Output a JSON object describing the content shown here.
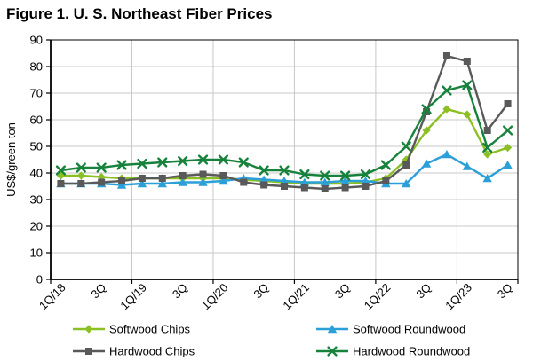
{
  "chart_data": {
    "type": "line",
    "title": "Figure 1. U. S. Northeast Fiber Prices",
    "xlabel": "",
    "ylabel": "US$/green ton",
    "ylim": [
      0,
      90
    ],
    "ytick_step": 10,
    "grid": true,
    "legend_position": "bottom",
    "categories": [
      "1Q/18",
      "2Q/18",
      "3Q/18",
      "4Q/18",
      "1Q/19",
      "2Q/19",
      "3Q/19",
      "4Q/19",
      "1Q/20",
      "2Q/20",
      "3Q/20",
      "4Q/20",
      "1Q/21",
      "2Q/21",
      "3Q/21",
      "4Q/21",
      "1Q/22",
      "2Q/22",
      "3Q/22",
      "4Q/22",
      "1Q/23",
      "2Q/23",
      "3Q/23"
    ],
    "x_tick_labels": [
      "1Q/18",
      "3Q",
      "1Q/19",
      "3Q",
      "1Q/20",
      "3Q",
      "1Q/21",
      "3Q",
      "1Q/22",
      "3Q",
      "1Q/23",
      "3Q"
    ],
    "x_tick_indices": [
      0,
      2,
      4,
      6,
      8,
      10,
      12,
      14,
      16,
      18,
      20,
      22
    ],
    "series": [
      {
        "name": "Softwood Chips",
        "color": "#8CBF23",
        "marker": "diamond",
        "values": [
          39,
          39,
          38.5,
          38,
          38,
          38,
          38,
          38,
          38,
          37.5,
          37,
          36.5,
          36,
          36,
          36,
          36.5,
          38,
          45,
          56,
          64,
          62,
          47,
          49.5
        ]
      },
      {
        "name": "Softwood Roundwood",
        "color": "#2B9FD8",
        "marker": "triangle",
        "values": [
          36,
          36,
          36,
          35.5,
          36,
          36,
          36.5,
          36.5,
          37,
          38,
          37.5,
          37,
          36.5,
          36.5,
          37,
          37,
          36,
          36,
          43.5,
          47,
          42.5,
          38,
          43
        ]
      },
      {
        "name": "Hardwood Chips",
        "color": "#595959",
        "marker": "square",
        "values": [
          36,
          36,
          36.5,
          37,
          38,
          38,
          39,
          39.5,
          39,
          36.5,
          35.5,
          35,
          34.5,
          34,
          34.5,
          35,
          37,
          43,
          63,
          84,
          82,
          56,
          66
        ]
      },
      {
        "name": "Hardwood Roundwood",
        "color": "#17823C",
        "marker": "x",
        "values": [
          41,
          42,
          42,
          43,
          43.5,
          44,
          44.5,
          45,
          45,
          44,
          41,
          41,
          39.5,
          39,
          39,
          39.5,
          43,
          50,
          64,
          71,
          73,
          49.5,
          56
        ]
      }
    ],
    "legend": {
      "columns": [
        [
          "Softwood Chips",
          "Hardwood Chips"
        ],
        [
          "Softwood Roundwood",
          "Hardwood Roundwood"
        ]
      ]
    },
    "colors": {
      "gridline": "#C8C8C8",
      "axis": "#000000",
      "background": "#FFFFFF"
    }
  }
}
